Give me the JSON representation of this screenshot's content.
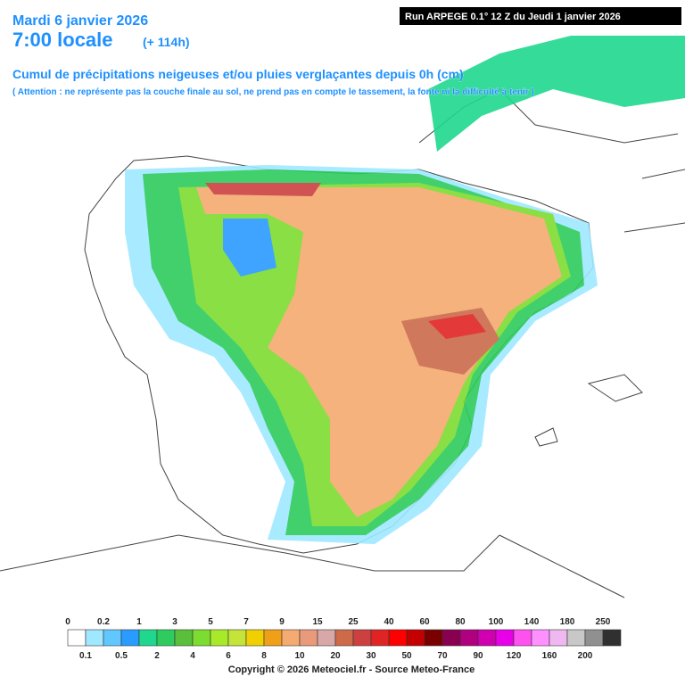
{
  "header": {
    "date": "Mardi 6 janvier 2026",
    "time": "7:00 locale",
    "lead": "(+ 114h)",
    "run": "Run ARPEGE 0.1° 12 Z du Jeudi 1 janvier 2026",
    "title": "Cumul de précipitations neigeuses et/ou pluies verglaçantes depuis 0h (cm)",
    "note": "( Attention : ne représente pas la couche finale au sol, ne prend pas en compte le tassement, la fonte ni la difficulté à tenir )"
  },
  "legend": {
    "ticks": [
      0,
      0.1,
      0.2,
      0.5,
      1,
      2,
      3,
      4,
      5,
      6,
      7,
      8,
      9,
      10,
      15,
      20,
      25,
      30,
      40,
      50,
      60,
      70,
      80,
      90,
      100,
      120,
      140,
      160,
      180,
      200,
      250
    ],
    "colors": [
      "#ffffff",
      "#9fe8ff",
      "#60c8ff",
      "#2a9bff",
      "#1fd88e",
      "#2ecc5e",
      "#5abf3a",
      "#7ddc30",
      "#a8ea2a",
      "#c4e43a",
      "#f0d000",
      "#f0a018",
      "#f4aa70",
      "#e99a7a",
      "#d8a8a8",
      "#cc6a4a",
      "#cc4040",
      "#e02424",
      "#ff0000",
      "#c40000",
      "#7a0000",
      "#8a0050",
      "#b00080",
      "#d000b0",
      "#e800e8",
      "#ff50f0",
      "#ff90ff",
      "#f0b8f0",
      "#c8c8c8",
      "#909090",
      "#303030"
    ]
  },
  "footer": {
    "copyright": "Copyright © 2026 Meteociel.fr - Source Meteo-France"
  }
}
